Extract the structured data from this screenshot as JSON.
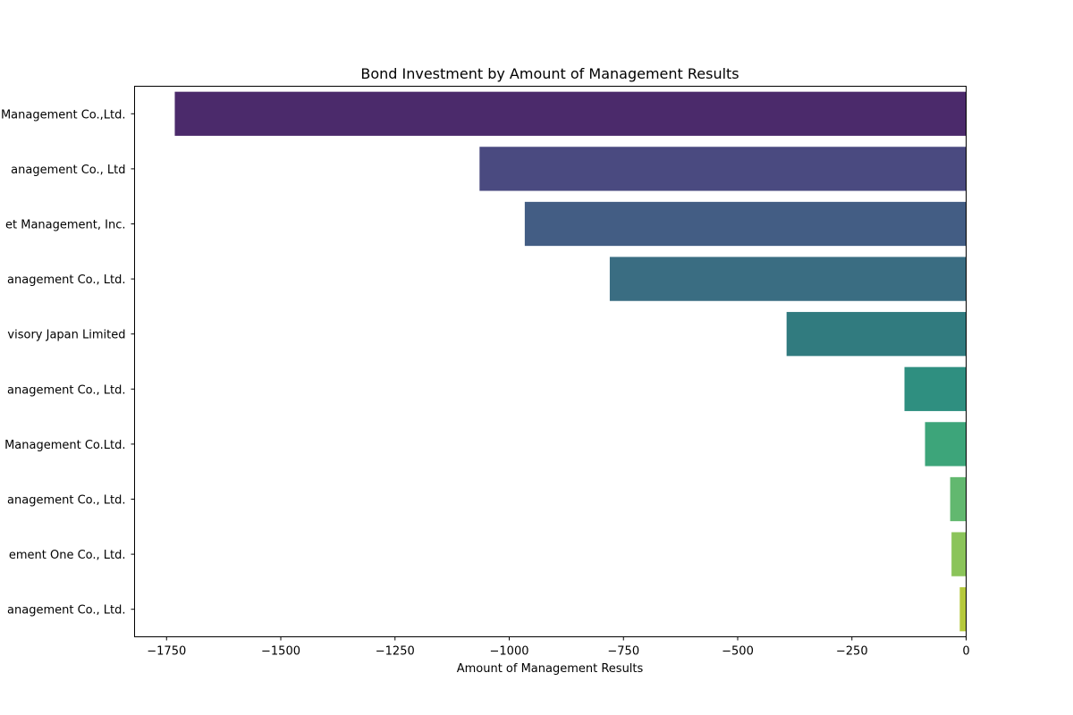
{
  "chart_data": {
    "type": "bar",
    "orientation": "horizontal",
    "title": "Bond Investment by Amount of Management Results",
    "xlabel": "Amount of Management Results",
    "ylabel": "",
    "xlim": [
      -1820,
      0
    ],
    "xticks": [
      -1750,
      -1500,
      -1250,
      -1000,
      -750,
      -500,
      -250,
      0
    ],
    "xtick_labels": [
      "−1750",
      "−1500",
      "−1250",
      "−1000",
      "−750",
      "−500",
      "−250",
      "0"
    ],
    "grid": false,
    "categories": [
      "Management Co.,Ltd.",
      "anagement Co., Ltd",
      "et Management, Inc.",
      "anagement Co., Ltd.",
      "visory Japan Limited",
      "anagement Co., Ltd.",
      "Management Co.Ltd.",
      "anagement Co., Ltd.",
      "ement One Co., Ltd.",
      "anagement Co., Ltd."
    ],
    "values": [
      -1732,
      -1065,
      -966,
      -780,
      -393,
      -135,
      -90,
      -35,
      -32,
      -14
    ],
    "colors": [
      "#4b2a6b",
      "#4a4a80",
      "#435d84",
      "#3a6d82",
      "#317b7f",
      "#2f8f80",
      "#3da57a",
      "#62b86f",
      "#8bc45a",
      "#b5c93c"
    ]
  }
}
